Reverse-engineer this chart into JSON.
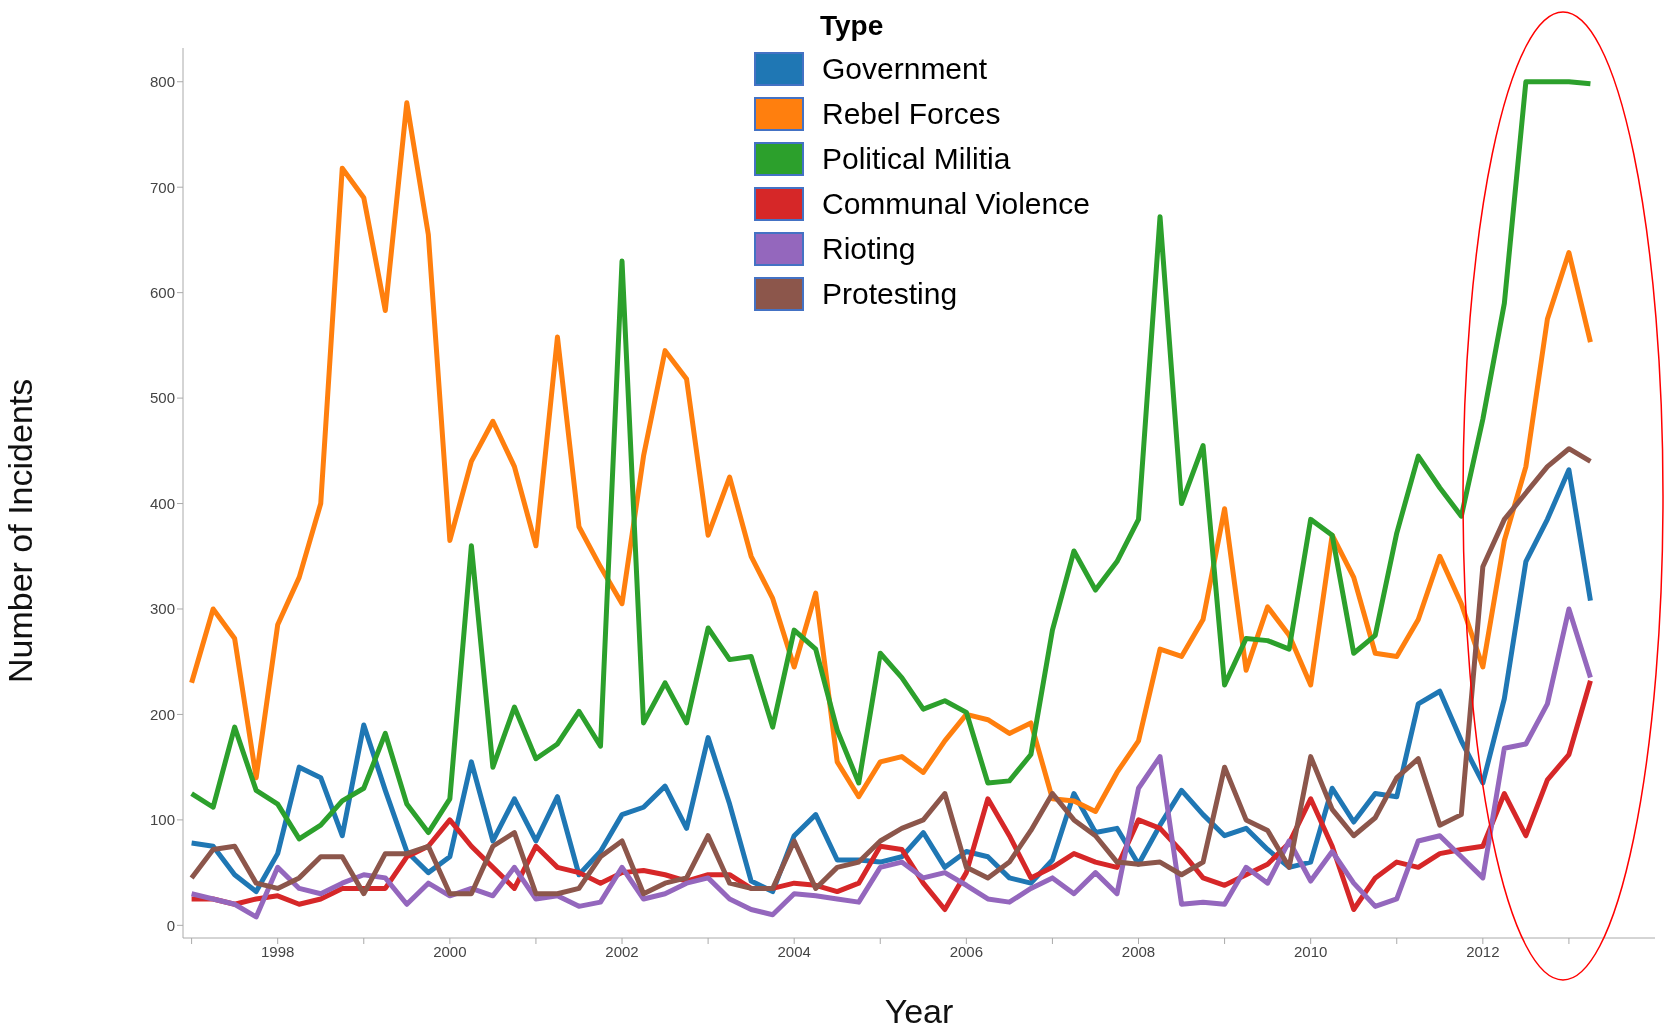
{
  "chart_data": {
    "type": "line",
    "xlabel": "Year",
    "ylabel": "Number of Incidents",
    "legend_title": "Type",
    "legend": "top",
    "xlim": [
      1996.9,
      2014
    ],
    "ylim": [
      -12,
      832
    ],
    "xticks": [
      {
        "value": 1997,
        "label": null
      },
      1998,
      {
        "value": 1999,
        "label": null
      },
      2000,
      {
        "value": 2001,
        "label": null
      },
      2002,
      {
        "value": 2003,
        "label": null
      },
      2004,
      {
        "value": 2005,
        "label": null
      },
      2006,
      {
        "value": 2007,
        "label": null
      },
      2008,
      {
        "value": 2009,
        "label": null
      },
      2010,
      {
        "value": 2011,
        "label": null
      },
      2012,
      {
        "value": 2013,
        "label": null
      }
    ],
    "yticks": [
      0,
      100,
      200,
      300,
      400,
      500,
      600,
      700,
      800
    ],
    "x": [
      1997,
      1997.25,
      1997.5,
      1997.75,
      1998,
      1998.25,
      1998.5,
      1998.75,
      1999,
      1999.25,
      1999.5,
      1999.75,
      2000,
      2000.25,
      2000.5,
      2000.75,
      2001,
      2001.25,
      2001.5,
      2001.75,
      2002,
      2002.25,
      2002.5,
      2002.75,
      2003,
      2003.25,
      2003.5,
      2003.75,
      2004,
      2004.25,
      2004.5,
      2004.75,
      2005,
      2005.25,
      2005.5,
      2005.75,
      2006,
      2006.25,
      2006.5,
      2006.75,
      2007,
      2007.25,
      2007.5,
      2007.75,
      2008,
      2008.25,
      2008.5,
      2008.75,
      2009,
      2009.25,
      2009.5,
      2009.75,
      2010,
      2010.25,
      2010.5,
      2010.75,
      2011,
      2011.25,
      2011.5,
      2011.75,
      2012,
      2012.25,
      2012.5,
      2012.75,
      2013,
      2013.25
    ],
    "series": [
      {
        "name": "Government",
        "color": "#1f77b4",
        "values": [
          78,
          75,
          48,
          32,
          68,
          150,
          140,
          85,
          190,
          128,
          70,
          50,
          65,
          155,
          80,
          120,
          80,
          122,
          48,
          70,
          105,
          112,
          132,
          92,
          178,
          115,
          42,
          32,
          85,
          105,
          62,
          62,
          60,
          65,
          88,
          55,
          70,
          65,
          45,
          40,
          62,
          125,
          88,
          92,
          58,
          95,
          128,
          105,
          85,
          92,
          72,
          55,
          60,
          130,
          98,
          125,
          122,
          210,
          222,
          175,
          135,
          215,
          345,
          385,
          432,
          308
        ]
      },
      {
        "name": "Rebel Forces",
        "color": "#ff7f0e",
        "values": [
          230,
          300,
          272,
          140,
          285,
          330,
          400,
          718,
          690,
          583,
          780,
          655,
          365,
          440,
          478,
          435,
          360,
          558,
          378,
          340,
          305,
          445,
          545,
          518,
          370,
          425,
          350,
          310,
          245,
          315,
          155,
          122,
          155,
          160,
          145,
          175,
          200,
          195,
          182,
          192,
          120,
          118,
          108,
          145,
          175,
          262,
          255,
          290,
          395,
          242,
          302,
          275,
          228,
          370,
          330,
          258,
          255,
          290,
          350,
          305,
          245,
          365,
          435,
          575,
          638,
          553
        ]
      },
      {
        "name": "Political Militia",
        "color": "#2ca02c",
        "values": [
          125,
          112,
          188,
          128,
          115,
          82,
          95,
          118,
          130,
          182,
          115,
          88,
          120,
          360,
          150,
          207,
          158,
          172,
          203,
          170,
          630,
          192,
          230,
          192,
          282,
          252,
          255,
          188,
          280,
          262,
          185,
          135,
          258,
          235,
          205,
          213,
          202,
          135,
          137,
          162,
          280,
          355,
          318,
          345,
          385,
          672,
          400,
          455,
          228,
          272,
          270,
          262,
          385,
          370,
          258,
          275,
          372,
          445,
          415,
          388,
          480,
          590,
          800,
          800,
          800,
          798
        ]
      },
      {
        "name": "Communal Violence",
        "color": "#d62728",
        "values": [
          25,
          25,
          20,
          25,
          28,
          20,
          25,
          35,
          35,
          35,
          65,
          75,
          100,
          75,
          55,
          35,
          75,
          55,
          50,
          40,
          50,
          52,
          48,
          42,
          48,
          48,
          35,
          35,
          40,
          38,
          32,
          40,
          75,
          72,
          40,
          15,
          50,
          120,
          85,
          45,
          55,
          68,
          60,
          55,
          100,
          92,
          70,
          45,
          38,
          48,
          58,
          78,
          120,
          75,
          15,
          45,
          60,
          55,
          68,
          72,
          75,
          125,
          85,
          138,
          162,
          232
        ]
      },
      {
        "name": "Rioting",
        "color": "#9467bd",
        "values": [
          30,
          25,
          20,
          8,
          55,
          35,
          30,
          40,
          48,
          45,
          20,
          40,
          28,
          35,
          28,
          55,
          25,
          28,
          18,
          22,
          55,
          25,
          30,
          40,
          45,
          25,
          15,
          10,
          30,
          28,
          25,
          22,
          55,
          60,
          45,
          50,
          38,
          25,
          22,
          35,
          45,
          30,
          50,
          30,
          130,
          160,
          20,
          22,
          20,
          55,
          40,
          80,
          42,
          70,
          40,
          18,
          25,
          80,
          85,
          65,
          45,
          168,
          172,
          210,
          300,
          235
        ]
      },
      {
        "name": "Protesting",
        "color": "#8c564b",
        "values": [
          45,
          72,
          75,
          40,
          35,
          45,
          65,
          65,
          30,
          68,
          68,
          75,
          30,
          30,
          75,
          88,
          30,
          30,
          35,
          65,
          80,
          30,
          40,
          45,
          85,
          40,
          35,
          35,
          80,
          35,
          55,
          60,
          80,
          92,
          100,
          125,
          55,
          45,
          60,
          90,
          125,
          100,
          85,
          60,
          58,
          60,
          48,
          60,
          150,
          100,
          90,
          55,
          160,
          110,
          85,
          102,
          140,
          158,
          95,
          105,
          340,
          385,
          410,
          435,
          452,
          440
        ]
      }
    ]
  }
}
